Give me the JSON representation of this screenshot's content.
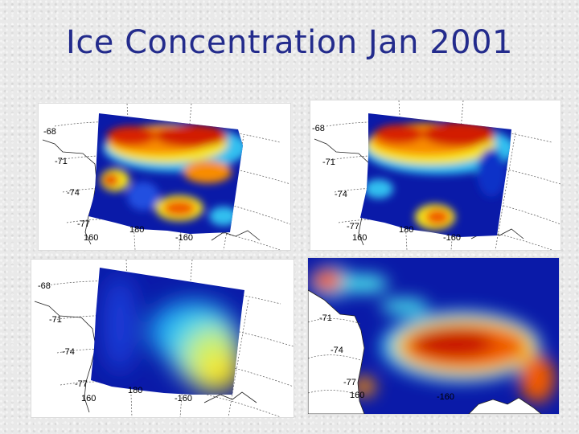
{
  "slide": {
    "title": "Ice Concentration Jan 2001"
  },
  "panels": [
    {
      "id": "top-left",
      "labels": {
        "lat1": "-68",
        "lat2": "-71",
        "lat3": "-74",
        "lat4": "-77",
        "lon1": "160",
        "lon2": "180",
        "lon3": "-160"
      }
    },
    {
      "id": "top-right",
      "labels": {
        "lat1": "-68",
        "lat2": "-71",
        "lat3": "-74",
        "lat4": "-77",
        "lon1": "160",
        "lon2": "180",
        "lon3": "-160"
      }
    },
    {
      "id": "bottom-left",
      "labels": {
        "lat1": "-68",
        "lat2": "-71",
        "lat3": "-74",
        "lat4": "-77",
        "lon1": "160",
        "lon2": "180",
        "lon3": "-160"
      }
    },
    {
      "id": "bottom-right",
      "labels": {
        "lat2": "-71",
        "lat3": "-74",
        "lat4": "-77",
        "lon1": "160",
        "lon3": "-160"
      }
    }
  ],
  "colors": {
    "title": "#232b8c",
    "ice_high": "#cc1a00",
    "ice_mid": "#f7e51e",
    "ice_low": "#0a1aa8"
  }
}
